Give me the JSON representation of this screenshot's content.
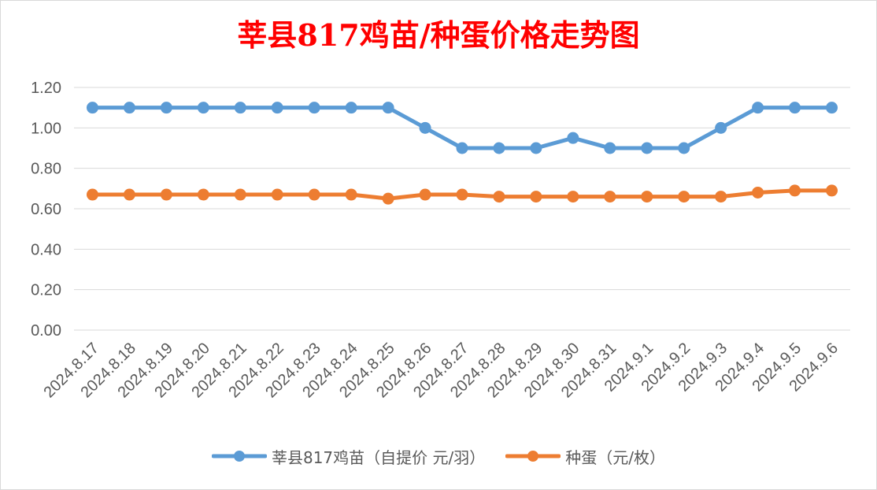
{
  "chart_data": {
    "type": "line",
    "title": "莘县817鸡苗/种蛋价格走势图",
    "categories": [
      "2024.8.17",
      "2024.8.18",
      "2024.8.19",
      "2024.8.20",
      "2024.8.21",
      "2024.8.22",
      "2024.8.23",
      "2024.8.24",
      "2024.8.25",
      "2024.8.26",
      "2024.8.27",
      "2024.8.28",
      "2024.8.29",
      "2024.8.30",
      "2024.8.31",
      "2024.9.1",
      "2024.9.2",
      "2024.9.3",
      "2024.9.4",
      "2024.9.5",
      "2024.9.6"
    ],
    "series": [
      {
        "name": "莘县817鸡苗（自提价 元/羽）",
        "color": "#5b9bd5",
        "values": [
          1.1,
          1.1,
          1.1,
          1.1,
          1.1,
          1.1,
          1.1,
          1.1,
          1.1,
          1.0,
          0.9,
          0.9,
          0.9,
          0.95,
          0.9,
          0.9,
          0.9,
          1.0,
          1.1,
          1.1,
          1.1
        ]
      },
      {
        "name": "种蛋（元/枚）",
        "color": "#ed7d31",
        "values": [
          0.67,
          0.67,
          0.67,
          0.67,
          0.67,
          0.67,
          0.67,
          0.67,
          0.65,
          0.67,
          0.67,
          0.66,
          0.66,
          0.66,
          0.66,
          0.66,
          0.66,
          0.66,
          0.68,
          0.69,
          0.69
        ]
      }
    ],
    "y_ticks": [
      "0.00",
      "0.20",
      "0.40",
      "0.60",
      "0.80",
      "1.00",
      "1.20"
    ],
    "ylim": [
      0,
      1.2
    ],
    "grid": true,
    "legend_position": "bottom"
  }
}
